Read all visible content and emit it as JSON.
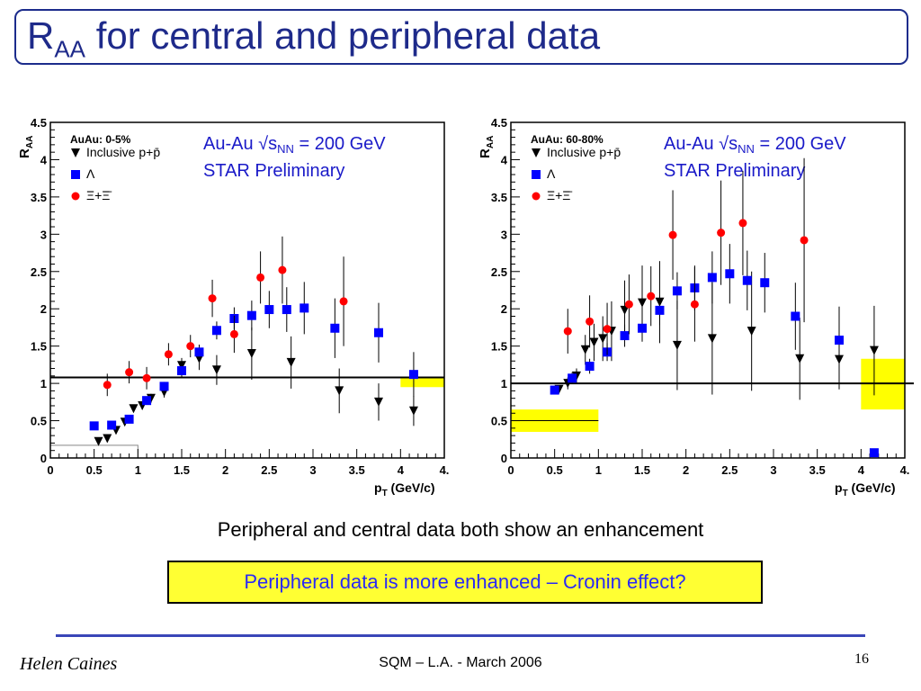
{
  "slide": {
    "title_main": "R",
    "title_sub": "AA",
    "title_rest": " for central and peripheral data",
    "caption": "Peripheral and central data both show an enhancement",
    "note": "Peripheral data is more enhanced – Cronin effect?",
    "footer_author": "Helen Caines",
    "footer_center": "SQM  – L.A. - March 2006",
    "page_number": "16"
  },
  "chart_data": [
    {
      "type": "scatter",
      "panel_label": "AuAu: 0-5%",
      "annotation_line1": "Au-Au √s",
      "annotation_line1_sub": "NN",
      "annotation_line1_rest": " = 200 GeV",
      "annotation_line2": "STAR Preliminary",
      "ylabel": "R",
      "ylabel_sub": "AA",
      "xlabel": "p",
      "xlabel_sub": "T",
      "xlabel_rest": " (GeV/c)",
      "xlim": [
        0,
        4.5
      ],
      "ylim": [
        0,
        4.5
      ],
      "x_ticks": [
        "0",
        "0.5",
        "1",
        "1.5",
        "2",
        "2.5",
        "3",
        "3.5",
        "4",
        "4."
      ],
      "y_ticks": [
        "0",
        "0.5",
        "1",
        "1.5",
        "2",
        "2.5",
        "3",
        "3.5",
        "4",
        "4.5"
      ],
      "reference_line": 1.08,
      "legend": [
        {
          "label": "Inclusive p+p̄",
          "marker": "triangle-down",
          "color": "#000000"
        },
        {
          "label": "Λ",
          "marker": "square",
          "color": "#0000ff"
        },
        {
          "label": "Ξ+Ξ̄",
          "marker": "circle",
          "color": "#ff0000"
        }
      ],
      "series": [
        {
          "name": "Inclusive p+p̄",
          "marker": "triangle-down",
          "color": "#000000",
          "x": [
            0.55,
            0.65,
            0.75,
            0.85,
            0.95,
            1.05,
            1.15,
            1.3,
            1.5,
            1.7,
            1.9,
            2.3,
            2.75,
            3.3,
            3.75,
            4.15
          ],
          "y": [
            0.22,
            0.26,
            0.37,
            0.48,
            0.66,
            0.7,
            0.8,
            0.88,
            1.24,
            1.33,
            1.18,
            1.4,
            1.28,
            0.9,
            0.75,
            0.63
          ],
          "err": [
            0.03,
            0.03,
            0.03,
            0.04,
            0.05,
            0.05,
            0.06,
            0.07,
            0.1,
            0.15,
            0.2,
            0.35,
            0.35,
            0.3,
            0.25,
            0.2
          ]
        },
        {
          "name": "Λ",
          "marker": "square",
          "color": "#0000ff",
          "x": [
            0.5,
            0.7,
            0.9,
            1.1,
            1.3,
            1.5,
            1.7,
            1.9,
            2.1,
            2.3,
            2.5,
            2.7,
            2.9,
            3.25,
            3.75,
            4.15
          ],
          "y": [
            0.43,
            0.44,
            0.52,
            0.77,
            0.96,
            1.17,
            1.42,
            1.71,
            1.87,
            1.91,
            1.99,
            1.99,
            2.01,
            1.74,
            1.68,
            1.12
          ],
          "err": [
            0.03,
            0.03,
            0.04,
            0.05,
            0.06,
            0.08,
            0.1,
            0.12,
            0.15,
            0.2,
            0.25,
            0.3,
            0.35,
            0.4,
            0.4,
            0.3
          ]
        },
        {
          "name": "Ξ+Ξ̄",
          "marker": "circle",
          "color": "#ff0000",
          "x": [
            0.65,
            0.9,
            1.1,
            1.35,
            1.6,
            1.85,
            2.1,
            2.4,
            2.65,
            3.35
          ],
          "y": [
            0.98,
            1.15,
            1.07,
            1.39,
            1.5,
            2.14,
            1.66,
            2.42,
            2.52,
            2.1
          ],
          "err": [
            0.15,
            0.15,
            0.15,
            0.15,
            0.15,
            0.25,
            0.25,
            0.35,
            0.45,
            0.6
          ]
        }
      ],
      "systematic_boxes": [
        {
          "x": [
            4.0,
            4.5
          ],
          "y": [
            0.95,
            1.08
          ],
          "color": "#ffff00"
        },
        {
          "x": [
            0.0,
            1.0
          ],
          "y": [
            0.0,
            0.17
          ],
          "color": "none"
        }
      ]
    },
    {
      "type": "scatter",
      "panel_label": "AuAu: 60-80%",
      "annotation_line1": "Au-Au √s",
      "annotation_line1_sub": "NN",
      "annotation_line1_rest": " = 200 GeV",
      "annotation_line2": "STAR Preliminary",
      "ylabel": "R",
      "ylabel_sub": "AA",
      "xlabel": "p",
      "xlabel_sub": "T",
      "xlabel_rest": " (GeV/c)",
      "xlim": [
        0,
        4.5
      ],
      "ylim": [
        0,
        4.5
      ],
      "x_ticks": [
        "0",
        "0.5",
        "1",
        "1.5",
        "2",
        "2.5",
        "3",
        "3.5",
        "4",
        "4."
      ],
      "y_ticks": [
        "0",
        "0.5",
        "1",
        "1.5",
        "2",
        "2.5",
        "3",
        "3.5",
        "4",
        "4.5"
      ],
      "reference_line": 1.0,
      "legend": [
        {
          "label": "Inclusive p+p̄",
          "marker": "triangle-down",
          "color": "#000000"
        },
        {
          "label": "Λ",
          "marker": "square",
          "color": "#0000ff"
        },
        {
          "label": "Ξ+Ξ̄",
          "marker": "circle",
          "color": "#ff0000"
        }
      ],
      "series": [
        {
          "name": "Inclusive p+p̄",
          "marker": "triangle-down",
          "color": "#000000",
          "x": [
            0.55,
            0.65,
            0.75,
            0.85,
            0.95,
            1.05,
            1.15,
            1.3,
            1.5,
            1.7,
            1.9,
            2.3,
            2.75,
            3.3,
            3.75,
            4.15
          ],
          "y": [
            0.92,
            1.0,
            1.1,
            1.45,
            1.55,
            1.6,
            1.7,
            1.98,
            2.08,
            2.09,
            1.51,
            1.6,
            1.7,
            1.33,
            1.32,
            1.44
          ],
          "err": [
            0.05,
            0.08,
            0.1,
            0.2,
            0.25,
            0.3,
            0.4,
            0.4,
            0.5,
            0.55,
            0.6,
            0.75,
            0.8,
            0.55,
            0.4,
            0.6
          ]
        },
        {
          "name": "Λ",
          "marker": "square",
          "color": "#0000ff",
          "x": [
            0.5,
            0.7,
            0.9,
            1.1,
            1.3,
            1.5,
            1.7,
            1.9,
            2.1,
            2.3,
            2.5,
            2.7,
            2.9,
            3.25,
            3.75,
            4.15
          ],
          "y": [
            0.91,
            1.07,
            1.23,
            1.42,
            1.64,
            1.74,
            1.98,
            2.24,
            2.28,
            2.42,
            2.47,
            2.38,
            2.35,
            1.9,
            1.58,
            0.07
          ],
          "err": [
            0.05,
            0.08,
            0.1,
            0.12,
            0.15,
            0.18,
            0.2,
            0.25,
            0.3,
            0.35,
            0.4,
            0.4,
            0.4,
            0.45,
            0.45,
            0.05
          ]
        },
        {
          "name": "Ξ+Ξ̄",
          "marker": "circle",
          "color": "#ff0000",
          "x": [
            0.65,
            0.9,
            1.1,
            1.35,
            1.6,
            1.85,
            2.1,
            2.4,
            2.65,
            3.35
          ],
          "y": [
            1.7,
            1.83,
            1.73,
            2.06,
            2.17,
            2.99,
            2.06,
            3.02,
            3.15,
            2.92
          ],
          "err": [
            0.3,
            0.35,
            0.35,
            0.4,
            0.4,
            0.6,
            0.5,
            0.7,
            0.7,
            1.1
          ]
        }
      ],
      "systematic_boxes": [
        {
          "x": [
            0.0,
            1.0
          ],
          "y": [
            0.35,
            0.65
          ],
          "color": "#ffff00"
        },
        {
          "x": [
            4.0,
            4.5
          ],
          "y": [
            0.65,
            1.33
          ],
          "color": "#ffff00"
        }
      ]
    }
  ]
}
